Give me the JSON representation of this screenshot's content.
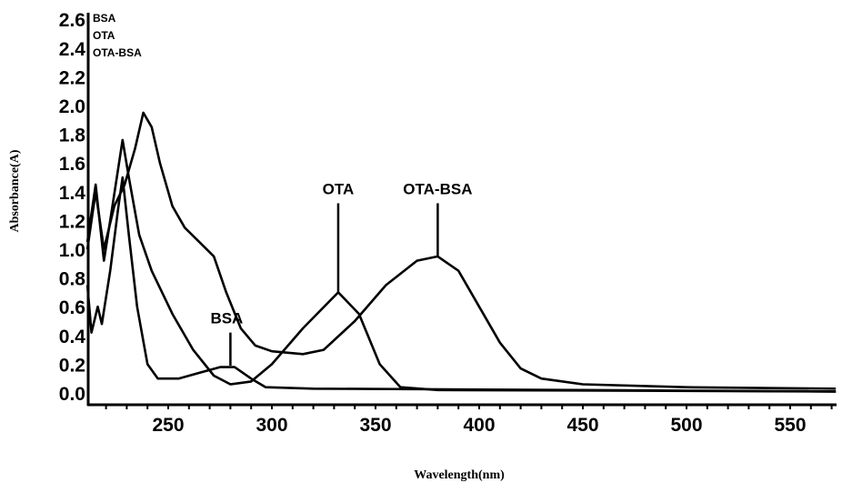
{
  "chart_data": {
    "type": "line",
    "title": "",
    "xlabel": "Wavelength(nm)",
    "ylabel": "Absorbance(A)",
    "xlim": [
      211,
      572
    ],
    "ylim": [
      0.0,
      2.6
    ],
    "xticks": [
      250,
      300,
      350,
      400,
      450,
      500,
      550
    ],
    "yticks": [
      "0.0",
      "0.2",
      "0.4",
      "0.6",
      "0.8",
      "1.0",
      "1.2",
      "1.4",
      "1.6",
      "1.8",
      "2.0",
      "2.2",
      "2.4",
      "2.6"
    ],
    "legend": {
      "placement": "top-left",
      "entries": [
        "BSA",
        "OTA",
        "OTA-BSA"
      ]
    },
    "series": [
      {
        "name": "BSA",
        "x": [
          211,
          213,
          216,
          218,
          222,
          226,
          228,
          231,
          235,
          240,
          245,
          255,
          265,
          275,
          282,
          290,
          297,
          320,
          450,
          572
        ],
        "y": [
          0.75,
          0.42,
          0.6,
          0.48,
          0.85,
          1.3,
          1.5,
          1.1,
          0.6,
          0.2,
          0.1,
          0.1,
          0.14,
          0.18,
          0.18,
          0.1,
          0.04,
          0.03,
          0.02,
          0.01
        ]
      },
      {
        "name": "OTA",
        "x": [
          211,
          215,
          219,
          222,
          228,
          231,
          236,
          242,
          252,
          262,
          272,
          280,
          290,
          300,
          315,
          332,
          342,
          352,
          362,
          380,
          572
        ],
        "y": [
          1.05,
          1.45,
          0.92,
          1.2,
          1.76,
          1.5,
          1.1,
          0.85,
          0.55,
          0.3,
          0.12,
          0.06,
          0.08,
          0.2,
          0.45,
          0.7,
          0.55,
          0.2,
          0.04,
          0.02,
          0.01
        ]
      },
      {
        "name": "OTA-BSA",
        "x": [
          211,
          215,
          219,
          224,
          229,
          234,
          238,
          242,
          246,
          252,
          258,
          265,
          272,
          278,
          285,
          292,
          300,
          315,
          325,
          340,
          355,
          370,
          380,
          390,
          400,
          410,
          420,
          430,
          450,
          500,
          572
        ],
        "y": [
          1.0,
          1.4,
          1.0,
          1.3,
          1.45,
          1.7,
          1.95,
          1.85,
          1.6,
          1.3,
          1.15,
          1.05,
          0.95,
          0.7,
          0.45,
          0.33,
          0.29,
          0.27,
          0.3,
          0.5,
          0.75,
          0.92,
          0.95,
          0.85,
          0.6,
          0.35,
          0.17,
          0.1,
          0.06,
          0.04,
          0.03
        ]
      }
    ],
    "annotations": [
      {
        "text": "BSA",
        "x": 280,
        "y": 0.19
      },
      {
        "text": "OTA",
        "x": 332,
        "y": 0.7
      },
      {
        "text": "OTA-BSA",
        "x": 380,
        "y": 0.95
      }
    ]
  }
}
